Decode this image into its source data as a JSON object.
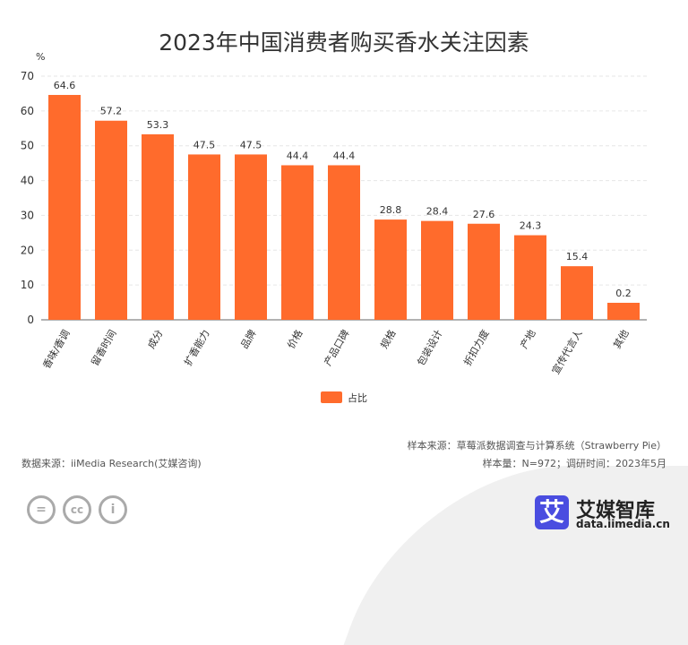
{
  "chart_data": {
    "type": "bar",
    "title": "2023年中国消费者购买香水关注因素",
    "ylabel": "%",
    "ylim": [
      0,
      70
    ],
    "yticks": [
      0,
      10,
      20,
      30,
      40,
      50,
      60,
      70
    ],
    "grid": true,
    "legend_position": "bottom",
    "bar_color": "#ff6b2c",
    "categories": [
      "香味/香调",
      "留香时间",
      "成分",
      "扩香能力",
      "品牌",
      "价格",
      "产品口碑",
      "规格",
      "包装设计",
      "折扣力度",
      "产地",
      "宣传代言人",
      "其他"
    ],
    "series": [
      {
        "name": "占比",
        "values": [
          64.6,
          57.2,
          53.3,
          47.5,
          47.5,
          44.4,
          44.4,
          28.8,
          28.4,
          27.6,
          24.3,
          15.4,
          0.2
        ]
      }
    ]
  },
  "footer": {
    "source": "数据来源：iiMedia Research(艾媒咨询)",
    "sample_source": "样本来源：草莓派数据调查与计算系统（Strawberry Pie）",
    "sample_info": "样本量：N=972；调研时间：2023年5月",
    "brand": "艾媒智库",
    "logo_char": "艾",
    "url": "data.iimedia.cn"
  }
}
